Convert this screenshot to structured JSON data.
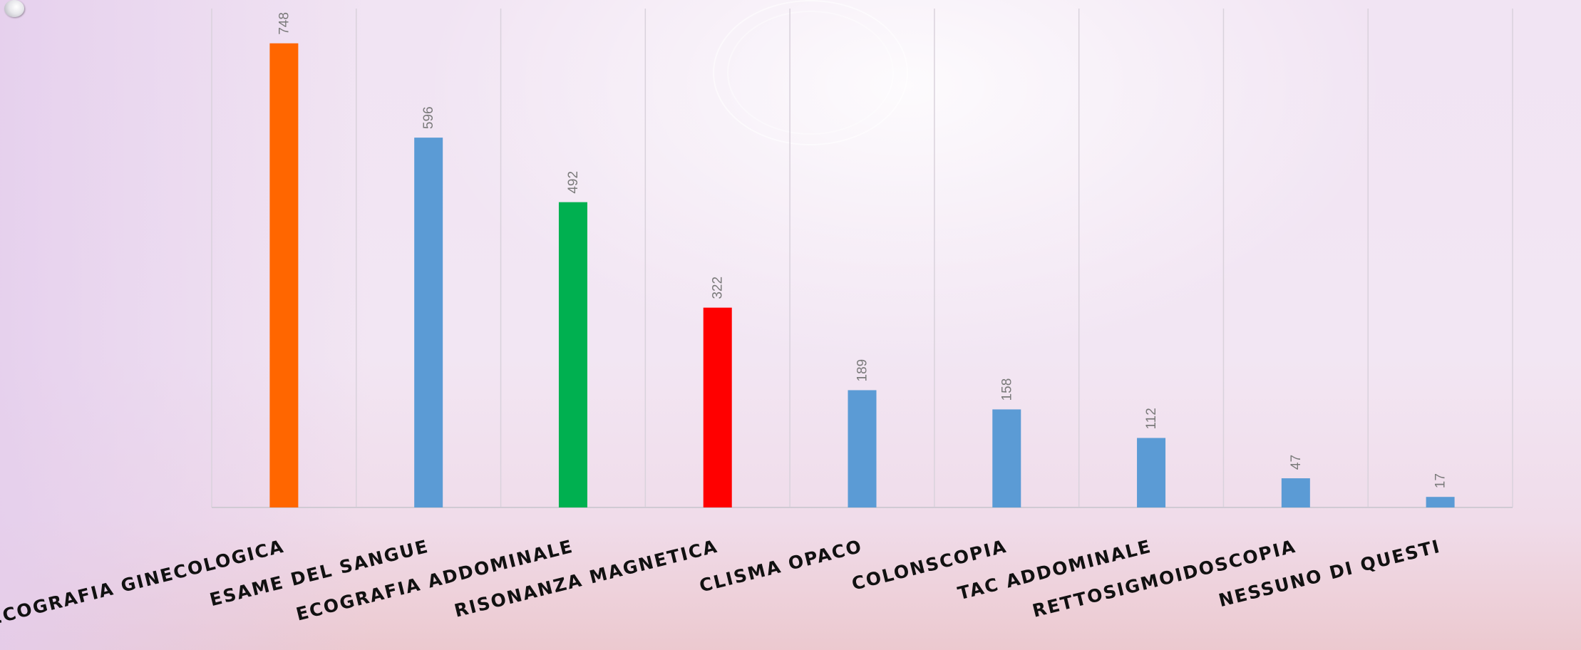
{
  "chart_data": {
    "type": "bar",
    "title": "",
    "xlabel": "",
    "ylabel": "",
    "ylim": [
      0,
      800
    ],
    "grid": "vertical",
    "legend": "none",
    "categories": [
      "ECOGRAFIA GINECOLOGICA",
      "ESAME DEL SANGUE",
      "ECOGRAFIA ADDOMINALE",
      "RISONANZA MAGNETICA",
      "CLISMA OPACO",
      "COLONSCOPIA",
      "TAC ADDOMINALE",
      "RETTOSIGMOIDOSCOPIA",
      "NESSUNO DI QUESTI"
    ],
    "values": [
      748,
      596,
      492,
      322,
      189,
      158,
      112,
      47,
      17
    ],
    "colors": [
      "#ff6600",
      "#5b9bd5",
      "#00b050",
      "#ff0000",
      "#5b9bd5",
      "#5b9bd5",
      "#5b9bd5",
      "#5b9bd5",
      "#5b9bd5"
    ],
    "gridline_color": "#d9d2dc",
    "axis_color": "#d0cad4"
  }
}
